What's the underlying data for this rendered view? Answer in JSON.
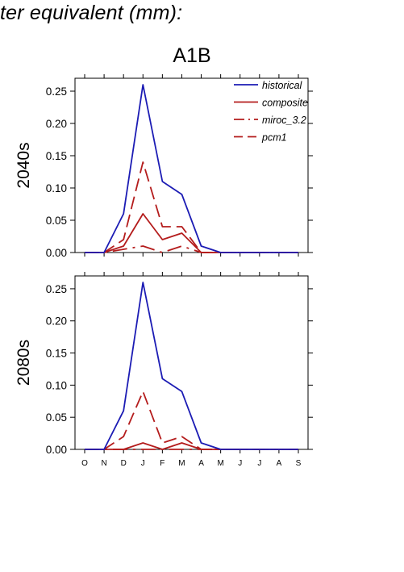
{
  "page_title": "ter equivalent (mm):",
  "scenario_label": "A1B",
  "colors": {
    "historical": "#1c1cb4",
    "future": "#b41c1c",
    "axis": "#000000"
  },
  "chart_data": [
    {
      "type": "line",
      "row_label": "2040s",
      "categories": [
        "O",
        "N",
        "D",
        "J",
        "F",
        "M",
        "A",
        "M",
        "J",
        "J",
        "A",
        "S"
      ],
      "ylim": [
        0,
        0.27
      ],
      "yticks": [
        "0.00",
        "0.05",
        "0.10",
        "0.15",
        "0.20",
        "0.25"
      ],
      "ytick_values": [
        0,
        0.05,
        0.1,
        0.15,
        0.2,
        0.25
      ],
      "show_month_labels": false,
      "legend": true,
      "series": [
        {
          "name": "historical",
          "key": "historical",
          "style": "solid",
          "values": [
            0,
            0,
            0.06,
            0.26,
            0.11,
            0.09,
            0.01,
            0,
            0,
            0,
            0,
            0
          ]
        },
        {
          "name": "composite",
          "key": "future",
          "style": "solid",
          "values": [
            0,
            0,
            0.01,
            0.06,
            0.02,
            0.03,
            0,
            0,
            0,
            0,
            0,
            0
          ]
        },
        {
          "name": "miroc_3.2",
          "key": "future",
          "style": "dashdot",
          "values": [
            0,
            0,
            0.005,
            0.01,
            0,
            0.01,
            0,
            0,
            0,
            0,
            0,
            0
          ]
        },
        {
          "name": "pcm1",
          "key": "future",
          "style": "dashed",
          "values": [
            0,
            0,
            0.02,
            0.14,
            0.04,
            0.04,
            0,
            0,
            0,
            0,
            0,
            0
          ]
        }
      ]
    },
    {
      "type": "line",
      "row_label": "2080s",
      "categories": [
        "O",
        "N",
        "D",
        "J",
        "F",
        "M",
        "A",
        "M",
        "J",
        "J",
        "A",
        "S"
      ],
      "ylim": [
        0,
        0.27
      ],
      "yticks": [
        "0.00",
        "0.05",
        "0.10",
        "0.15",
        "0.20",
        "0.25"
      ],
      "ytick_values": [
        0,
        0.05,
        0.1,
        0.15,
        0.2,
        0.25
      ],
      "show_month_labels": true,
      "legend": false,
      "series": [
        {
          "key": "historical",
          "style": "solid",
          "values": [
            0,
            0,
            0.06,
            0.26,
            0.11,
            0.09,
            0.01,
            0,
            0,
            0,
            0,
            0
          ]
        },
        {
          "key": "future",
          "style": "solid",
          "values": [
            0,
            0,
            0,
            0.01,
            0,
            0.01,
            0,
            0,
            0,
            0,
            0,
            0
          ]
        },
        {
          "key": "future",
          "style": "dashdot",
          "values": [
            0,
            0,
            0,
            0,
            0,
            0,
            0,
            0,
            0,
            0,
            0,
            0
          ]
        },
        {
          "key": "future",
          "style": "dashed",
          "values": [
            0,
            0,
            0.02,
            0.09,
            0.01,
            0.02,
            0,
            0,
            0,
            0,
            0,
            0
          ]
        }
      ]
    }
  ]
}
